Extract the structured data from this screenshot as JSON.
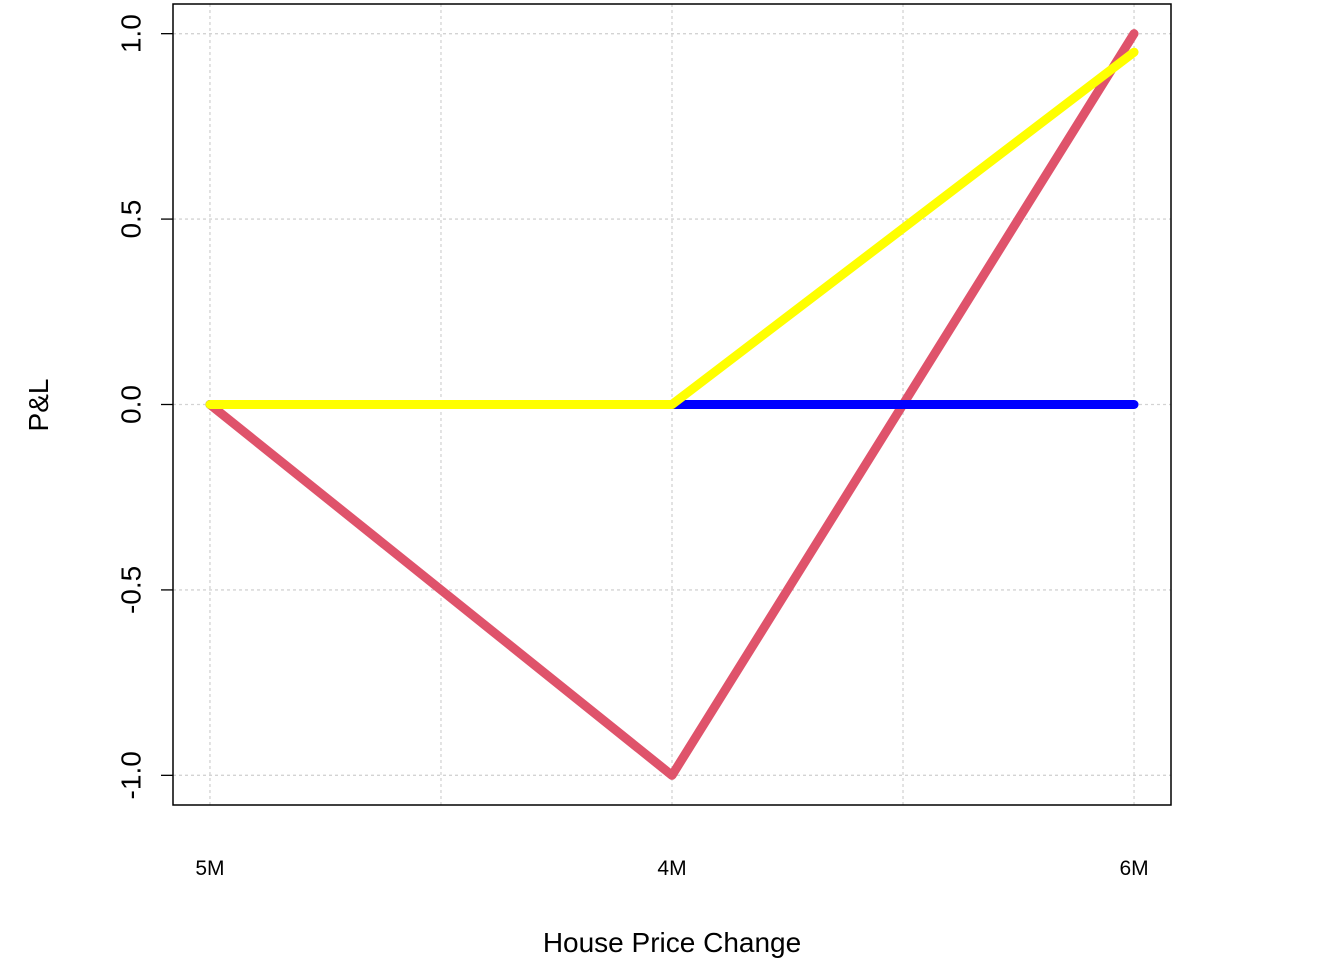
{
  "chart_data": {
    "type": "line",
    "x_label": "House Price Change",
    "y_label": "P&L",
    "x": [
      1,
      2,
      3
    ],
    "series": [
      {
        "color": "#df536b",
        "values": [
          0,
          -1,
          1
        ]
      },
      {
        "color": "#0000ff",
        "values": [
          0,
          0,
          0
        ]
      },
      {
        "color": "#ffff00",
        "values": [
          0,
          0,
          0.95
        ]
      }
    ],
    "xlim": [
      0.92,
      3.08
    ],
    "ylim": [
      -1.08,
      1.08
    ],
    "xticks": [
      {
        "value": 1,
        "label": "5M"
      },
      {
        "value": 2,
        "label": "4M"
      },
      {
        "value": 3,
        "label": "6M"
      }
    ],
    "xgrid": [
      1,
      1.5,
      2,
      2.5,
      3
    ],
    "yticks": [
      {
        "value": -1,
        "label": "-1.0"
      },
      {
        "value": -0.5,
        "label": "-0.5"
      },
      {
        "value": 0,
        "label": "0.0"
      },
      {
        "value": 0.5,
        "label": "0.5"
      },
      {
        "value": 1,
        "label": "1.0"
      }
    ],
    "grid": true
  }
}
